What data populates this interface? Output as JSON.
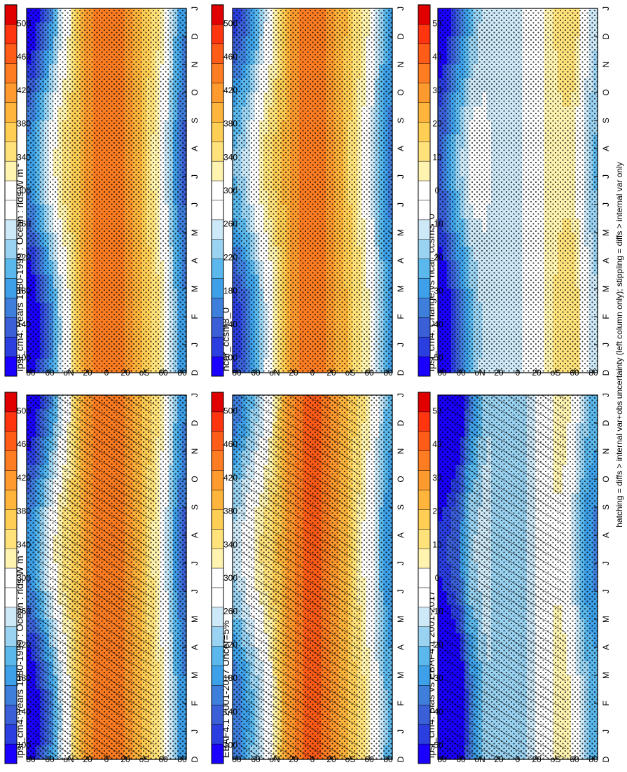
{
  "figure": {
    "footnote": "hatching = diffs > internal var+obs uncertainty (left column only); stippling = diffs > internal var only",
    "orientation": "rotated 90 degrees counter-clockwise"
  },
  "colorscales": {
    "absolute": {
      "labels": [
        "100",
        "140",
        "180",
        "220",
        "260",
        "300",
        "340",
        "380",
        "420",
        "460",
        "500"
      ],
      "colors": [
        "#1a00ff",
        "#2b3fe0",
        "#3a5fd6",
        "#3f7fdc",
        "#3da0e8",
        "#5ab8ec",
        "#9ad3f2",
        "#cde8f7",
        "#ffffff",
        "#ffffff",
        "#fff3b0",
        "#ffe27a",
        "#ffce55",
        "#ffb43c",
        "#ff9a2e",
        "#ff7d22",
        "#ff5c18",
        "#ff3510",
        "#e00000"
      ]
    },
    "difference": {
      "labels": [
        "-50",
        "-40",
        "-30",
        "-20",
        "-10",
        "0",
        "10",
        "20",
        "30",
        "40",
        "50"
      ],
      "colors": [
        "#1a00ff",
        "#2b3fe0",
        "#3a5fd6",
        "#3f7fdc",
        "#3da0e8",
        "#5ab8ec",
        "#9ad3f2",
        "#cde8f7",
        "#ffffff",
        "#ffffff",
        "#fff3b0",
        "#ffe27a",
        "#ffce55",
        "#ffb43c",
        "#ff9a2e",
        "#ff7d22",
        "#ff5c18",
        "#ff3510",
        "#e00000"
      ]
    }
  },
  "chart_data": [
    {
      "id": "p1",
      "type": "heatmap",
      "scale": "absolute",
      "patterns": [
        "stipple",
        "hatch"
      ],
      "title": "ipsl_cm4: Years 1980-1999 : Ocean : rlds W m",
      "title_superscript": "-2",
      "xlabel": "month",
      "ylabel": "latitude",
      "x_ticks": [
        "D",
        "J",
        "F",
        "M",
        "A",
        "M",
        "J",
        "J",
        "A",
        "S",
        "O",
        "N",
        "D",
        "J"
      ],
      "y_ticks": [
        "80",
        "60",
        "N",
        "20",
        "0",
        "20",
        "S",
        "60",
        "80"
      ],
      "lat_profile": [
        [
          -85,
          175
        ],
        [
          -75,
          230
        ],
        [
          -65,
          295
        ],
        [
          -55,
          335
        ],
        [
          -45,
          360
        ],
        [
          -35,
          385
        ],
        [
          -25,
          405
        ],
        [
          -15,
          420
        ],
        [
          -5,
          425
        ],
        [
          5,
          422
        ],
        [
          15,
          415
        ],
        [
          25,
          395
        ],
        [
          35,
          360
        ],
        [
          45,
          318
        ],
        [
          55,
          275
        ],
        [
          65,
          220
        ],
        [
          75,
          175
        ],
        [
          85,
          140
        ]
      ],
      "seasonal_amp_north": 55,
      "seasonal_amp_south": 15
    },
    {
      "id": "p2",
      "type": "heatmap",
      "scale": "absolute",
      "patterns": [
        "stipple"
      ],
      "title": "ipsl_cm4: Years 1980-1999 : Ocean : rlds W m",
      "title_superscript": "-2",
      "xlabel": "month",
      "ylabel": "latitude",
      "x_ticks": [
        "D",
        "J",
        "F",
        "M",
        "A",
        "M",
        "J",
        "J",
        "A",
        "S",
        "O",
        "N",
        "D",
        "J"
      ],
      "y_ticks": [
        "80",
        "60",
        "N",
        "20",
        "0",
        "20",
        "S",
        "60",
        "80"
      ],
      "lat_profile": [
        [
          -85,
          175
        ],
        [
          -75,
          230
        ],
        [
          -65,
          295
        ],
        [
          -55,
          335
        ],
        [
          -45,
          360
        ],
        [
          -35,
          385
        ],
        [
          -25,
          405
        ],
        [
          -15,
          420
        ],
        [
          -5,
          425
        ],
        [
          5,
          422
        ],
        [
          15,
          415
        ],
        [
          25,
          395
        ],
        [
          35,
          360
        ],
        [
          45,
          318
        ],
        [
          55,
          275
        ],
        [
          65,
          220
        ],
        [
          75,
          175
        ],
        [
          85,
          140
        ]
      ],
      "seasonal_amp_north": 55,
      "seasonal_amp_south": 15
    },
    {
      "id": "p3",
      "type": "heatmap",
      "scale": "absolute",
      "patterns": [
        "stipple",
        "hatch"
      ],
      "title": "EBAF4.1 2001-2017 Uncer=5%",
      "title_superscript": "",
      "xlabel": "month",
      "ylabel": "latitude",
      "x_ticks": [
        "D",
        "J",
        "F",
        "M",
        "A",
        "M",
        "J",
        "J",
        "A",
        "S",
        "O",
        "N",
        "D",
        "J"
      ],
      "y_ticks": [
        "80",
        "60",
        "N",
        "20",
        "0",
        "20",
        "S",
        "60",
        "80"
      ],
      "lat_profile": [
        [
          -85,
          200
        ],
        [
          -75,
          250
        ],
        [
          -65,
          300
        ],
        [
          -55,
          330
        ],
        [
          -45,
          355
        ],
        [
          -35,
          385
        ],
        [
          -25,
          410
        ],
        [
          -15,
          430
        ],
        [
          -5,
          440
        ],
        [
          5,
          440
        ],
        [
          15,
          432
        ],
        [
          25,
          410
        ],
        [
          35,
          372
        ],
        [
          45,
          335
        ],
        [
          55,
          300
        ],
        [
          65,
          270
        ],
        [
          75,
          240
        ],
        [
          85,
          210
        ]
      ],
      "seasonal_amp_north": 45,
      "seasonal_amp_south": 15
    },
    {
      "id": "p4",
      "type": "heatmap",
      "scale": "absolute",
      "patterns": [
        "stipple"
      ],
      "title": "ncar_ccsm3_0",
      "title_superscript": "",
      "xlabel": "month",
      "ylabel": "latitude",
      "x_ticks": [
        "D",
        "J",
        "F",
        "M",
        "A",
        "M",
        "J",
        "J",
        "A",
        "S",
        "O",
        "N",
        "D",
        "J"
      ],
      "y_ticks": [
        "80",
        "60",
        "N",
        "20",
        "0",
        "20",
        "S",
        "60",
        "80"
      ],
      "lat_profile": [
        [
          -85,
          190
        ],
        [
          -75,
          235
        ],
        [
          -65,
          290
        ],
        [
          -55,
          325
        ],
        [
          -45,
          350
        ],
        [
          -35,
          378
        ],
        [
          -25,
          400
        ],
        [
          -15,
          420
        ],
        [
          -5,
          428
        ],
        [
          5,
          426
        ],
        [
          15,
          418
        ],
        [
          25,
          398
        ],
        [
          35,
          362
        ],
        [
          45,
          325
        ],
        [
          55,
          290
        ],
        [
          65,
          245
        ],
        [
          75,
          205
        ],
        [
          85,
          180
        ]
      ],
      "seasonal_amp_north": 50,
      "seasonal_amp_south": 15
    },
    {
      "id": "p5",
      "type": "heatmap",
      "scale": "difference",
      "patterns": [
        "stipple",
        "hatch"
      ],
      "title": "ipsl_cm4: Bias vs EBAF4.1 2001-2017",
      "title_superscript": "",
      "xlabel": "month",
      "ylabel": "latitude",
      "x_ticks": [
        "D",
        "J",
        "F",
        "M",
        "A",
        "M",
        "J",
        "J",
        "A",
        "S",
        "O",
        "N",
        "D",
        "J"
      ],
      "y_ticks": [
        "80",
        "60",
        "N",
        "20",
        "0",
        "20",
        "S",
        "60",
        "80"
      ],
      "lat_profile": [
        [
          -85,
          -25
        ],
        [
          -75,
          -20
        ],
        [
          -65,
          -8
        ],
        [
          -55,
          2
        ],
        [
          -45,
          5
        ],
        [
          -35,
          0
        ],
        [
          -25,
          -5
        ],
        [
          -15,
          -12
        ],
        [
          -5,
          -15
        ],
        [
          5,
          -18
        ],
        [
          15,
          -18
        ],
        [
          25,
          -15
        ],
        [
          35,
          -12
        ],
        [
          45,
          -18
        ],
        [
          55,
          -25
        ],
        [
          65,
          -45
        ],
        [
          75,
          -50
        ],
        [
          85,
          -55
        ]
      ],
      "seasonal_amp_north": 12,
      "seasonal_amp_south": 5
    },
    {
      "id": "p6",
      "type": "heatmap",
      "scale": "difference",
      "patterns": [
        "stipple"
      ],
      "title": "ipsl_cm4: Change vs ncar_ccsm3_0",
      "title_superscript": "",
      "xlabel": "month",
      "ylabel": "latitude",
      "x_ticks": [
        "D",
        "J",
        "F",
        "M",
        "A",
        "M",
        "J",
        "J",
        "A",
        "S",
        "O",
        "N",
        "D",
        "J"
      ],
      "y_ticks": [
        "80",
        "60",
        "N",
        "20",
        "0",
        "20",
        "S",
        "60",
        "80"
      ],
      "lat_profile": [
        [
          -85,
          -15
        ],
        [
          -75,
          -5
        ],
        [
          -65,
          8
        ],
        [
          -55,
          10
        ],
        [
          -45,
          8
        ],
        [
          -35,
          5
        ],
        [
          -25,
          -2
        ],
        [
          -15,
          -5
        ],
        [
          -5,
          -8
        ],
        [
          5,
          -10
        ],
        [
          15,
          -12
        ],
        [
          25,
          -10
        ],
        [
          35,
          -8
        ],
        [
          45,
          -10
        ],
        [
          55,
          -15
        ],
        [
          65,
          -25
        ],
        [
          75,
          -35
        ],
        [
          85,
          -45
        ]
      ],
      "seasonal_amp_north": 10,
      "seasonal_amp_south": 4
    }
  ]
}
